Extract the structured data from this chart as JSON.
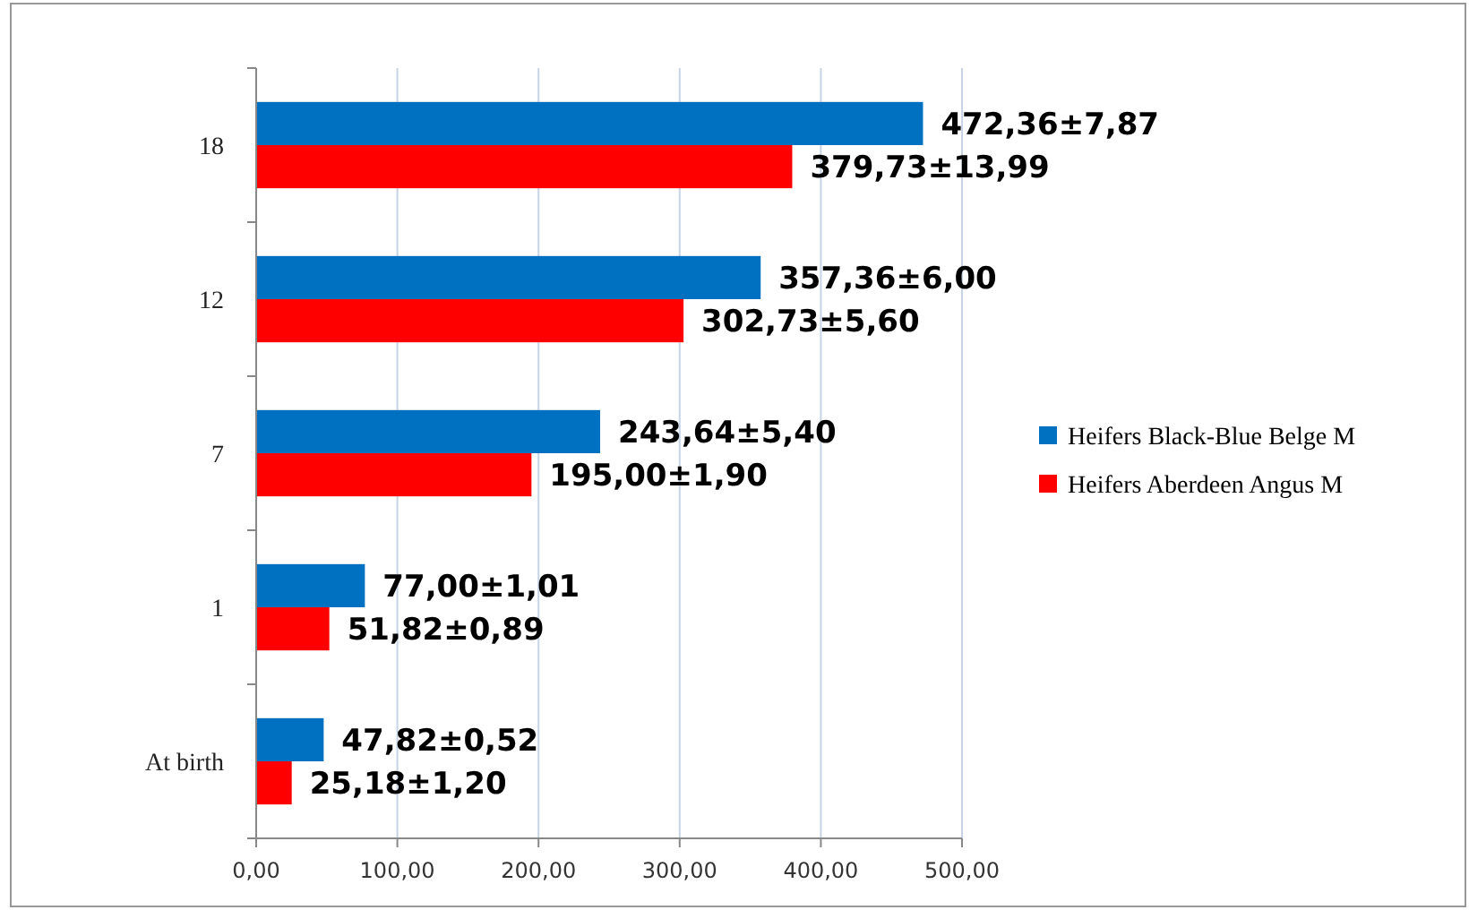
{
  "chart_data": {
    "type": "bar",
    "orientation": "horizontal",
    "categories": [
      "18",
      "12",
      "7",
      "1",
      "At birth"
    ],
    "series": [
      {
        "name": "Heifers Black-Blue Belge M",
        "color": "#0070c0",
        "values": [
          472.36,
          357.36,
          243.64,
          77.0,
          47.82
        ],
        "value_labels": [
          "472,36±7,87",
          "357,36±6,00",
          "243,64±5,40",
          "77,00±1,01",
          "47,82±0,52"
        ]
      },
      {
        "name": "Heifers Aberdeen Angus M",
        "color": "#ff0000",
        "values": [
          379.73,
          302.73,
          195.0,
          51.82,
          25.18
        ],
        "value_labels": [
          "379,73±13,99",
          "302,73±5,60",
          "195,00±1,90",
          "51,82±0,89",
          "25,18±1,20"
        ]
      }
    ],
    "xlim": [
      0,
      500
    ],
    "xticks": [
      {
        "value": 0,
        "label": "0,00"
      },
      {
        "value": 100,
        "label": "100,00"
      },
      {
        "value": 200,
        "label": "200,00"
      },
      {
        "value": 300,
        "label": "300,00"
      },
      {
        "value": 400,
        "label": "400,00"
      },
      {
        "value": 500,
        "label": "500,00"
      }
    ],
    "grid": "x",
    "legend": "right"
  }
}
